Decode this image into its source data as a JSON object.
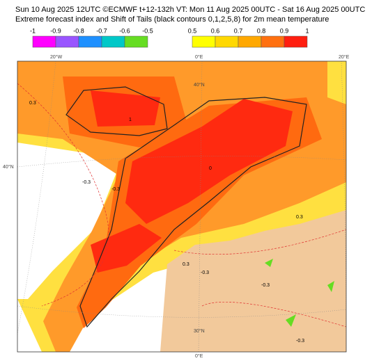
{
  "header": {
    "line1": "Sun 10 Aug 2025 12UTC ©ECMWF t+12-132h  VT: Mon 11 Aug 2025 00UTC - Sat 16 Aug 2025 00UTC",
    "line2": "Extreme forecast index and Shift of Tails (black contours 0,1,2,5,8) for 2m mean temperature"
  },
  "legend": {
    "negative": {
      "ticks": [
        -1,
        -0.9,
        -0.8,
        -0.7,
        -0.6,
        -0.5
      ],
      "colors": [
        "#ff00ff",
        "#9955ff",
        "#1e90ff",
        "#00c8c8",
        "#66dd22"
      ]
    },
    "positive": {
      "ticks": [
        0.5,
        0.6,
        0.7,
        0.8,
        0.9,
        1
      ],
      "colors": [
        "#ffff00",
        "#ffd800",
        "#ffa800",
        "#ff7010",
        "#ff1e10"
      ]
    }
  },
  "map": {
    "grid_labels": [
      "20°W",
      "0°E",
      "20°E",
      "40°N",
      "40°N",
      "30°N",
      "0°E"
    ],
    "contour_labels": [
      "0.3",
      "-0.3",
      "1",
      "0",
      "-0.3",
      "0.3",
      "-0.3",
      "-0.3",
      "0.3",
      "-0.3"
    ]
  }
}
